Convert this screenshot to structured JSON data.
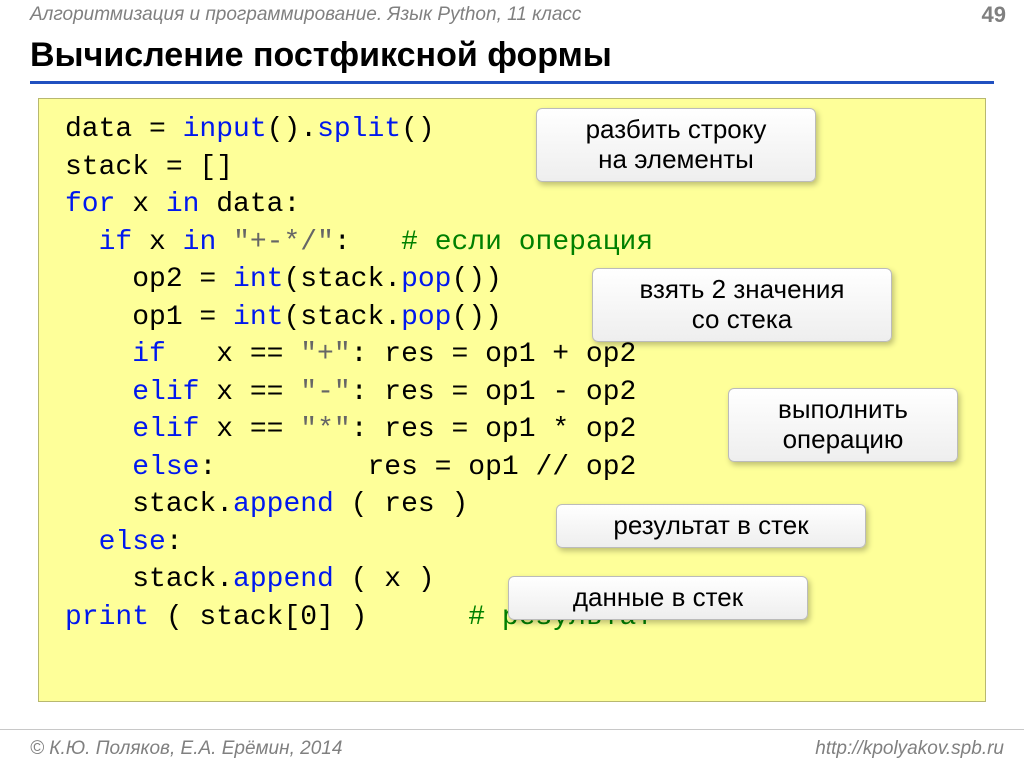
{
  "header": {
    "breadcrumb": "Алгоритмизация и программирование. Язык Python, 11 класс",
    "page": "49"
  },
  "title": "Вычисление постфиксной формы",
  "code": {
    "lines": [
      [
        {
          "c": "black",
          "t": "data = "
        },
        {
          "c": "blue",
          "t": "input"
        },
        {
          "c": "black",
          "t": "()."
        },
        {
          "c": "blue",
          "t": "split"
        },
        {
          "c": "black",
          "t": "()"
        }
      ],
      [
        {
          "c": "black",
          "t": "stack = []"
        }
      ],
      [
        {
          "c": "blue",
          "t": "for"
        },
        {
          "c": "black",
          "t": " x "
        },
        {
          "c": "blue",
          "t": "in"
        },
        {
          "c": "black",
          "t": " data:"
        }
      ],
      [
        {
          "c": "black",
          "t": "  "
        },
        {
          "c": "blue",
          "t": "if"
        },
        {
          "c": "black",
          "t": " x "
        },
        {
          "c": "blue",
          "t": "in"
        },
        {
          "c": "black",
          "t": " "
        },
        {
          "c": "gray",
          "t": "\"+-*/\""
        },
        {
          "c": "black",
          "t": ":   "
        },
        {
          "c": "green",
          "t": "# если операция"
        }
      ],
      [
        {
          "c": "black",
          "t": "    op2 = "
        },
        {
          "c": "blue",
          "t": "int"
        },
        {
          "c": "black",
          "t": "(stack."
        },
        {
          "c": "blue",
          "t": "pop"
        },
        {
          "c": "black",
          "t": "())"
        }
      ],
      [
        {
          "c": "black",
          "t": "    op1 = "
        },
        {
          "c": "blue",
          "t": "int"
        },
        {
          "c": "black",
          "t": "(stack."
        },
        {
          "c": "blue",
          "t": "pop"
        },
        {
          "c": "black",
          "t": "())"
        }
      ],
      [
        {
          "c": "black",
          "t": "    "
        },
        {
          "c": "blue",
          "t": "if"
        },
        {
          "c": "black",
          "t": "   x == "
        },
        {
          "c": "gray",
          "t": "\"+\""
        },
        {
          "c": "black",
          "t": ": res = op1 + op2"
        }
      ],
      [
        {
          "c": "black",
          "t": "    "
        },
        {
          "c": "blue",
          "t": "elif"
        },
        {
          "c": "black",
          "t": " x == "
        },
        {
          "c": "gray",
          "t": "\"-\""
        },
        {
          "c": "black",
          "t": ": res = op1 - op2"
        }
      ],
      [
        {
          "c": "black",
          "t": "    "
        },
        {
          "c": "blue",
          "t": "elif"
        },
        {
          "c": "black",
          "t": " x == "
        },
        {
          "c": "gray",
          "t": "\"*\""
        },
        {
          "c": "black",
          "t": ": res = op1 * op2"
        }
      ],
      [
        {
          "c": "black",
          "t": "    "
        },
        {
          "c": "blue",
          "t": "else"
        },
        {
          "c": "black",
          "t": ":         res = op1 // op2"
        }
      ],
      [
        {
          "c": "black",
          "t": "    stack."
        },
        {
          "c": "blue",
          "t": "append"
        },
        {
          "c": "black",
          "t": " ( res )"
        }
      ],
      [
        {
          "c": "black",
          "t": "  "
        },
        {
          "c": "blue",
          "t": "else"
        },
        {
          "c": "black",
          "t": ":"
        }
      ],
      [
        {
          "c": "black",
          "t": "    stack."
        },
        {
          "c": "blue",
          "t": "append"
        },
        {
          "c": "black",
          "t": " ( x )"
        }
      ],
      [
        {
          "c": "blue",
          "t": "print"
        },
        {
          "c": "black",
          "t": " ( stack[0] )      "
        },
        {
          "c": "green",
          "t": "# результат"
        }
      ]
    ]
  },
  "callouts": {
    "c1": "разбить строку\nна элементы",
    "c2": "взять 2 значения\nсо стека",
    "c3": "выполнить\nоперацию",
    "c4": "результат в стек",
    "c5": "данные в стек"
  },
  "footer": {
    "left": "© К.Ю. Поляков, Е.А. Ерёмин, 2014",
    "right": "http://kpolyakov.spb.ru"
  },
  "colors": {
    "code_bg": "#feff99",
    "keyword": "#0018ee",
    "comment": "#008000",
    "string": "#666666",
    "rule": "#2050c0",
    "muted": "#808080"
  }
}
